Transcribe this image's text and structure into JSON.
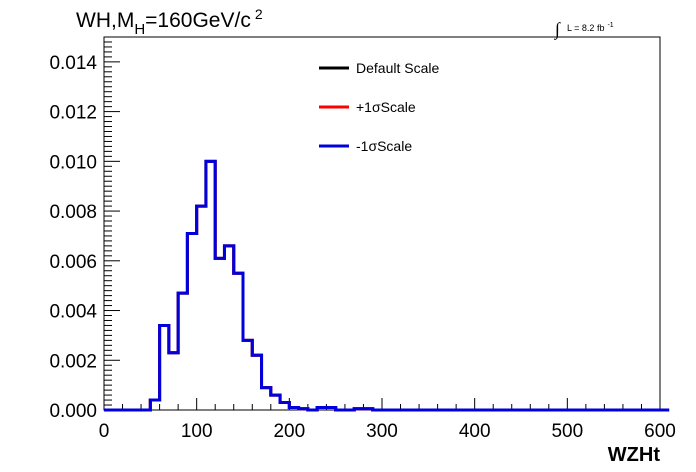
{
  "chart_data": {
    "type": "line",
    "title_main": "WH,M",
    "title_sub": "H",
    "title_rest": "=160GeV/c",
    "title_sup": "2",
    "lumi_text": "L = 8.2 fb",
    "lumi_sup": "-1",
    "xlabel": "WZHt",
    "ylabel": "",
    "xlim": [
      0,
      600
    ],
    "ylim": [
      0,
      0.015
    ],
    "x_ticks": [
      "0",
      "100",
      "200",
      "300",
      "400",
      "500",
      "600"
    ],
    "y_ticks": [
      "0.000",
      "0.002",
      "0.004",
      "0.006",
      "0.008",
      "0.010",
      "0.012",
      "0.014"
    ],
    "bin_width": 10,
    "legend_position": "top-center",
    "series": [
      {
        "name": "Default Scale",
        "color": "#000000",
        "values": [
          0,
          0,
          0,
          0,
          0,
          0.0004,
          0.0034,
          0.0023,
          0.0047,
          0.0071,
          0.0082,
          0.01,
          0.0061,
          0.0066,
          0.0055,
          0.0028,
          0.0022,
          0.0009,
          0.0006,
          0.0003,
          0.0001,
          5e-05,
          0,
          0.0001,
          0.0001,
          0,
          0,
          5e-05,
          5e-05,
          0,
          0,
          0,
          0,
          0,
          0,
          0,
          0,
          0,
          0,
          0,
          0,
          0,
          0,
          0,
          0,
          0,
          0,
          0,
          0,
          0,
          0,
          0,
          0,
          0,
          0,
          0,
          0,
          0,
          0,
          0
        ]
      },
      {
        "name": "+1σScale",
        "color": "#ff0000",
        "values": [
          0,
          0,
          0,
          0,
          0,
          0.0004,
          0.0034,
          0.0023,
          0.0047,
          0.0071,
          0.0082,
          0.01,
          0.0061,
          0.0066,
          0.0055,
          0.0028,
          0.0022,
          0.0009,
          0.0006,
          0.0003,
          0.0001,
          5e-05,
          0,
          0.0001,
          0.0001,
          0,
          0,
          5e-05,
          5e-05,
          0,
          0,
          0,
          0,
          0,
          0,
          0,
          0,
          0,
          0,
          0,
          0,
          0,
          0,
          0,
          0,
          0,
          0,
          0,
          0,
          0,
          0,
          0,
          0,
          0,
          0,
          0,
          0,
          0,
          0,
          0
        ]
      },
      {
        "name": "-1σScale",
        "color": "#0000dd",
        "values": [
          0,
          0,
          0,
          0,
          0,
          0.0004,
          0.0034,
          0.0023,
          0.0047,
          0.0071,
          0.0082,
          0.01,
          0.0061,
          0.0066,
          0.0055,
          0.0028,
          0.0022,
          0.0009,
          0.0006,
          0.0003,
          0.0001,
          5e-05,
          0,
          0.0001,
          0.0001,
          0,
          0,
          5e-05,
          5e-05,
          0,
          0,
          0,
          0,
          0,
          0,
          0,
          0,
          0,
          0,
          0,
          0,
          0,
          0,
          0,
          0,
          0,
          0,
          0,
          0,
          0,
          0,
          0,
          0,
          0,
          0,
          0,
          0,
          0,
          0,
          0,
          0
        ]
      }
    ]
  }
}
